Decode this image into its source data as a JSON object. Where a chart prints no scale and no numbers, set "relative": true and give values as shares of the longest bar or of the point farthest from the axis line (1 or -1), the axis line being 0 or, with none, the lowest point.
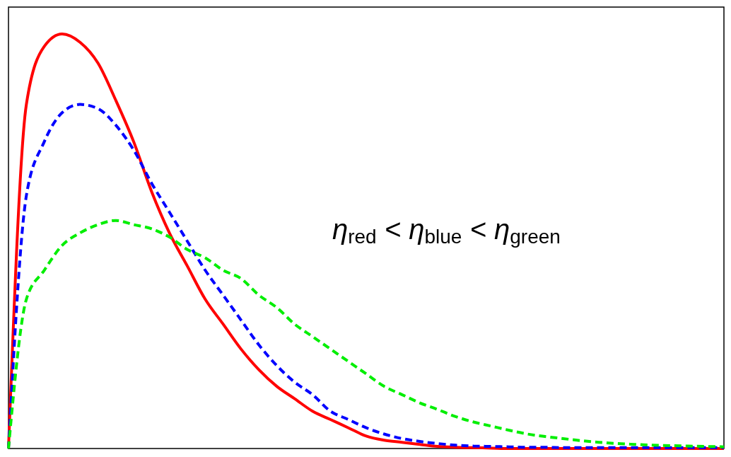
{
  "chart_data": {
    "type": "line",
    "relative": true,
    "categories": [
      null,
      null,
      null,
      null,
      null,
      null,
      null,
      null,
      null,
      null,
      null,
      null,
      null,
      null,
      null,
      null,
      null,
      null,
      null,
      null,
      null,
      null,
      null,
      null,
      null,
      null,
      null,
      null,
      null,
      null,
      null,
      null,
      null,
      null,
      null,
      null,
      null,
      null,
      null,
      null,
      null
    ],
    "series": [
      {
        "color": "#ff0000",
        "line_style": "solid",
        "values": [
          0,
          0.83,
          0.97,
          1,
          0.98,
          0.93,
          0.84,
          0.74,
          0.62,
          0.52,
          0.44,
          0.36,
          0.3,
          0.24,
          0.19,
          0.15,
          0.12,
          0.09,
          0.07,
          0.05,
          0.03,
          0.02,
          0.015,
          0.01,
          0.005,
          0.003,
          0.002,
          0.001,
          0,
          0,
          0,
          0,
          0,
          0,
          0,
          0,
          0,
          0,
          0,
          0,
          0
        ]
      },
      {
        "color": "#0000ff",
        "line_style": "dashed",
        "values": [
          0,
          0.61,
          0.74,
          0.81,
          0.83,
          0.82,
          0.78,
          0.72,
          0.64,
          0.57,
          0.5,
          0.43,
          0.37,
          0.31,
          0.25,
          0.2,
          0.16,
          0.13,
          0.09,
          0.07,
          0.05,
          0.035,
          0.024,
          0.017,
          0.012,
          0.008,
          0.006,
          0.005,
          0.004,
          0.003,
          0.003,
          0.002,
          0.002,
          0.002,
          0.002,
          0.002,
          0.002,
          0.002,
          0.002,
          0.002,
          0.002
        ]
      },
      {
        "color": "#00ee00",
        "line_style": "dashed",
        "values": [
          0,
          0.36,
          0.43,
          0.49,
          0.52,
          0.54,
          0.55,
          0.54,
          0.53,
          0.51,
          0.48,
          0.46,
          0.43,
          0.41,
          0.37,
          0.34,
          0.3,
          0.27,
          0.24,
          0.21,
          0.18,
          0.15,
          0.13,
          0.11,
          0.094,
          0.077,
          0.064,
          0.054,
          0.044,
          0.035,
          0.029,
          0.024,
          0.019,
          0.015,
          0.012,
          0.01,
          0.008,
          0.007,
          0.006,
          0.005,
          0.004
        ]
      }
    ],
    "annotations": [
      "η$_{red}$ < η$_{blue}$ < η$_{green}$"
    ]
  }
}
